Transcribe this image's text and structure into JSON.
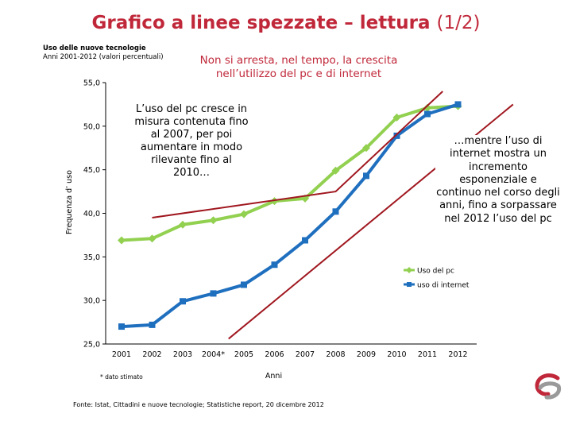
{
  "title": {
    "main": "Grafico a linee spezzate – lettura",
    "page": "(1/2)"
  },
  "subtitle": {
    "line1": "Uso delle nuove tecnologie",
    "line2": "Anni 2001-2012 (valori percentuali)"
  },
  "top_note": "Non si arresta, nel tempo, la crescita nell’utilizzo del pc e di internet",
  "annotation_left": "L’uso del pc cresce in misura contenuta fino al 2007, per poi aumentare in modo rilevante fino al 2010…",
  "annotation_right": "…mentre l’uso di internet mostra un incremento esponenziale e continuo nel corso degli anni, fino a sorpassare nel 2012 l’uso del pc",
  "footnote": "* dato stimato",
  "source": "Fonte: Istat, Cittadini e nuove tecnologie; Statistiche report, 20 dicembre 2012",
  "colors": {
    "title": "#c0283a",
    "pc": "#92d050",
    "internet": "#1f6fbf",
    "trend": "#a0171f"
  },
  "chart_data": {
    "type": "line",
    "xlabel": "Anni",
    "ylabel": "Frequenza d’ uso",
    "ylim": [
      25,
      55
    ],
    "y_ticks": [
      "25,0",
      "30,0",
      "35,0",
      "40,0",
      "45,0",
      "50,0",
      "55,0"
    ],
    "categories": [
      "2001",
      "2002",
      "2003",
      "2004*",
      "2005",
      "2006",
      "2007",
      "2008",
      "2009",
      "2010",
      "2011",
      "2012"
    ],
    "legend_position": "right",
    "series": [
      {
        "name": "Uso del pc",
        "color": "#92d050",
        "marker": "diamond",
        "values": [
          36.9,
          37.1,
          38.7,
          39.2,
          39.9,
          41.4,
          41.7,
          44.9,
          47.5,
          51.0,
          52.1,
          52.3
        ]
      },
      {
        "name": "uso di internet",
        "color": "#1f6fbf",
        "marker": "square",
        "values": [
          27.0,
          27.2,
          29.9,
          30.8,
          31.8,
          34.1,
          36.9,
          40.2,
          44.3,
          48.9,
          51.4,
          52.5
        ]
      }
    ],
    "trend_lines": [
      {
        "points": [
          [
            1,
            39.5
          ],
          [
            7,
            42.5
          ],
          [
            10.5,
            54.0
          ]
        ]
      },
      {
        "points": [
          [
            3.5,
            25.6
          ],
          [
            12.8,
            52.5
          ]
        ]
      }
    ]
  }
}
